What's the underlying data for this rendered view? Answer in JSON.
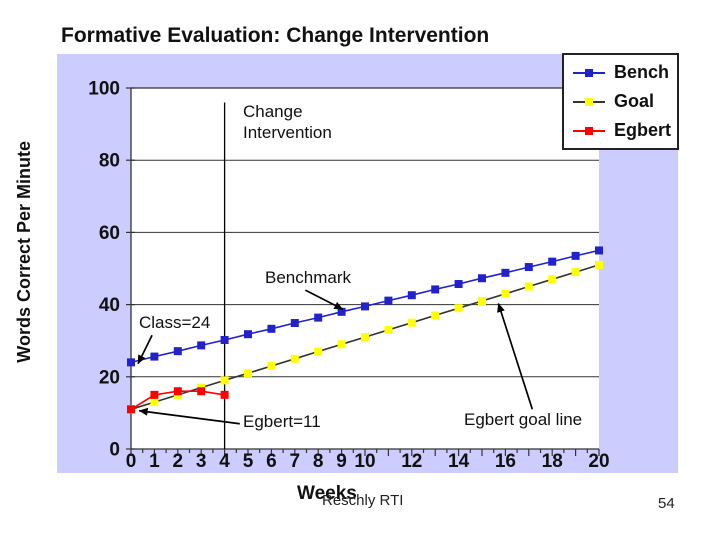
{
  "slide": {
    "title": "Formative Evaluation: Change Intervention",
    "footer": "Reschly RTI",
    "page_number": "54"
  },
  "chart_data": {
    "type": "line",
    "chart_bg": "#CCCCFF",
    "plot_bg": "#FFFFFF",
    "grid_color": "#333333",
    "axis_color": "#333333",
    "x_axis": {
      "label": "Weeks",
      "range": [
        0,
        20
      ],
      "minor_tick_step": 0.5,
      "tick_weeks": [
        0,
        1,
        2,
        3,
        4,
        5,
        6,
        7,
        8,
        9,
        10,
        12,
        14,
        16,
        18,
        20
      ],
      "tick_labels": [
        "0",
        "1",
        "2",
        "3",
        "4",
        "5",
        "6",
        "7",
        "8",
        "9",
        "10",
        "12",
        "14",
        "16",
        "18",
        "20"
      ]
    },
    "y_axis": {
      "label": "Words Correct Per Minute",
      "range": [
        0,
        100
      ],
      "tick_values": [
        0,
        20,
        40,
        60,
        80,
        100
      ],
      "tick_labels": [
        "0",
        "20",
        "40",
        "60",
        "80",
        "100"
      ]
    },
    "series": [
      {
        "name": "Bench",
        "line_color": "#2222CC",
        "marker_color": "#2222CC",
        "x": [
          0,
          1,
          2,
          3,
          4,
          5,
          6,
          7,
          8,
          9,
          10,
          11,
          12,
          13,
          14,
          15,
          16,
          17,
          18,
          19,
          20
        ],
        "values": [
          24,
          25.6,
          27.1,
          28.7,
          30.2,
          31.8,
          33.3,
          34.9,
          36.4,
          38,
          39.5,
          41.1,
          42.6,
          44.2,
          45.7,
          47.3,
          48.8,
          50.4,
          51.9,
          53.5,
          55
        ]
      },
      {
        "name": "Goal",
        "line_color": "#333333",
        "marker_color": "#FFFF00",
        "x": [
          0,
          1,
          2,
          3,
          4,
          5,
          6,
          7,
          8,
          9,
          10,
          11,
          12,
          13,
          14,
          15,
          16,
          17,
          18,
          19,
          20
        ],
        "values": [
          11,
          13,
          15,
          17,
          19,
          21,
          23,
          25,
          27,
          29,
          31,
          33,
          35,
          37,
          39,
          41,
          43,
          45,
          47,
          49,
          51
        ]
      },
      {
        "name": "Egbert",
        "line_color": "#FF0000",
        "marker_color": "#FF0000",
        "x": [
          0,
          1,
          2,
          3,
          4
        ],
        "values": [
          11,
          15,
          16,
          16,
          15
        ]
      }
    ],
    "intervention_line": {
      "week": 4,
      "from_value": 0,
      "to_value": 96
    },
    "legend": {
      "position": "top-right"
    },
    "annotations": {
      "change_intervention": "Change Intervention",
      "benchmark": "Benchmark",
      "class_note": "Class=24",
      "egbert_note": "Egbert=11",
      "egbert_goal": "Egbert goal line"
    },
    "arrows": [
      {
        "from": [
          7.45,
          44.0
        ],
        "to": [
          9.05,
          38.7
        ]
      },
      {
        "from": [
          0.9,
          31.5
        ],
        "to": [
          0.3,
          23.6
        ]
      },
      {
        "from": [
          4.65,
          7.0
        ],
        "to": [
          0.35,
          10.6
        ]
      },
      {
        "from": [
          17.15,
          11.0
        ],
        "to": [
          15.7,
          40.3
        ]
      }
    ]
  }
}
